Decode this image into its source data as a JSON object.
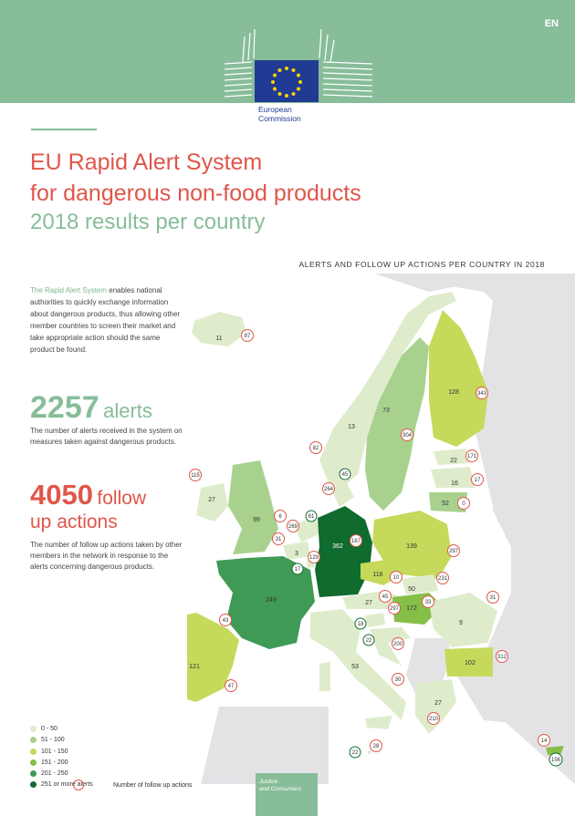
{
  "header": {
    "language": "EN",
    "logo_text_line1": "European",
    "logo_text_line2": "Commission"
  },
  "title": {
    "line1": "EU Rapid Alert System",
    "line2": "for dangerous non-food products",
    "line3": "2018 results per country"
  },
  "map_heading": "ALERTS AND FOLLOW UP ACTIONS PER COUNTRY IN 2018",
  "intro": {
    "highlight": "The Rapid Alert System",
    "rest": " enables national authorities to quickly exchange information about dangerous products, thus allowing other member countries to screen their market and take appropriate action should the same product be found."
  },
  "alerts": {
    "number": "2257",
    "word": "alerts",
    "description": "The number of alerts received in the system on measures taken against dangerous products."
  },
  "follow_up": {
    "number": "4050",
    "word1": "follow",
    "word2": "up actions",
    "description": "The number of follow up actions taken by other members in the network in response to the alerts concerning dangerous products."
  },
  "legend": {
    "items": [
      {
        "label": "0 - 50",
        "color": "#dfeccc"
      },
      {
        "label": "51 - 100",
        "color": "#a9d18e"
      },
      {
        "label": "101 - 150",
        "color": "#c6d95a"
      },
      {
        "label": "151 - 200",
        "color": "#86bf48"
      },
      {
        "label": "201 - 250",
        "color": "#3f9a55"
      },
      {
        "label": "251 or more alerts",
        "color": "#106b2e"
      }
    ],
    "follow_up_label": "Number of follow up actions"
  },
  "footer": {
    "line1": "Justice",
    "line2": "and Consumers"
  },
  "map_labels": {
    "alerts": {
      "iceland": "11",
      "norway": "13",
      "sweden": "73",
      "finland": "128",
      "estonia": "22",
      "latvia": "16",
      "lithuania": "52",
      "ireland": "27",
      "uk": "99",
      "netherlands": "61",
      "belgium": "3",
      "luxembourg": "17",
      "france": "249",
      "germany": "362",
      "poland": "139",
      "czechia": "116",
      "slovakia": "50",
      "austria": "27",
      "hungary": "172",
      "slovenia": "18",
      "croatia": "22",
      "romania": "9",
      "bulgaria": "102",
      "italy": "53",
      "spain": "121",
      "portugal": "45",
      "greece": "27",
      "malta": "22",
      "cyprus": "156",
      "denmark": "45"
    },
    "followups": {
      "iceland": "87",
      "norway": "82",
      "sweden": "304",
      "finland": "343",
      "estonia": "171",
      "latvia": "17",
      "lithuania": "0",
      "ireland": "115",
      "uk": "6",
      "netherlands": "269",
      "belgium": "31",
      "luxembourg": "129",
      "germany": "167",
      "poland": "297",
      "czechia": "10",
      "slovakia": "231",
      "austria": "45",
      "hungary": "297",
      "slovenia": "33",
      "croatia": "200",
      "romania": "31",
      "bulgaria": "312",
      "italy": "30",
      "spain": "47",
      "portugal": "237",
      "greece": "210",
      "malta": "28",
      "cyprus": "14",
      "denmark": "264",
      "france": "43"
    }
  }
}
